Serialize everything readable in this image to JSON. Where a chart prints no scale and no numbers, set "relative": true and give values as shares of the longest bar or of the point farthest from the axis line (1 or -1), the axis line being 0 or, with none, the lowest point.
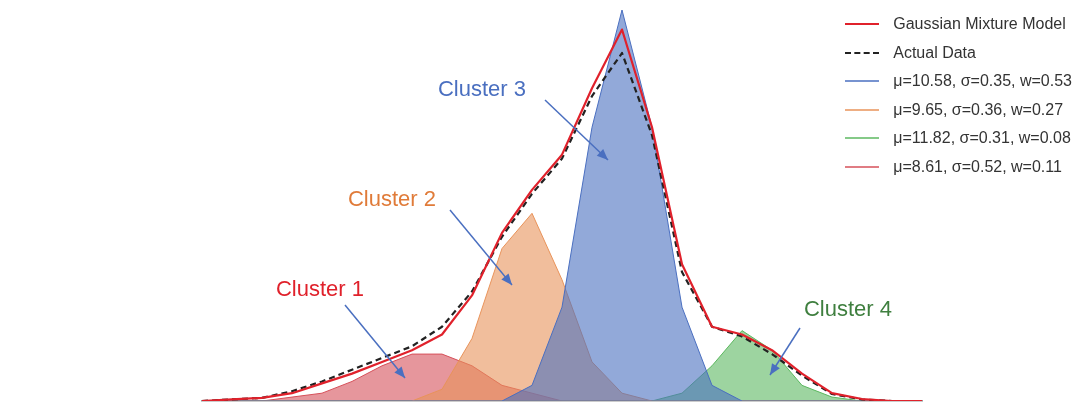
{
  "chart_data": {
    "type": "line",
    "relative": true,
    "grid": false,
    "legend": "top right",
    "marker": "none",
    "categories": [
      null,
      null,
      null,
      null,
      null,
      null,
      null,
      null,
      null,
      null,
      null,
      null,
      null,
      null,
      null,
      null,
      null,
      null,
      null,
      null,
      null,
      null,
      null,
      null,
      null
    ],
    "series": [
      {
        "name": "Gaussian Mixture Model",
        "type": "line",
        "color": "#e0212b",
        "line_style": "solid",
        "values": [
          0,
          0.004,
          0.008,
          0.02,
          0.045,
          0.07,
          0.1,
          0.13,
          0.17,
          0.27,
          0.43,
          0.54,
          0.63,
          0.8,
          0.95,
          0.7,
          0.35,
          0.19,
          0.17,
          0.13,
          0.07,
          0.02,
          0.005,
          0,
          0
        ]
      },
      {
        "name": "Actual Data",
        "type": "line",
        "color": "#222222",
        "line_style": "dashed",
        "values": [
          0,
          0.004,
          0.008,
          0.025,
          0.05,
          0.08,
          0.11,
          0.14,
          0.19,
          0.28,
          0.42,
          0.53,
          0.62,
          0.78,
          0.89,
          0.68,
          0.33,
          0.19,
          0.165,
          0.12,
          0.065,
          0.018,
          0.004,
          0,
          0
        ]
      },
      {
        "name": "μ=10.58, σ=0.35, w=0.53",
        "type": "area",
        "color": "#4a6fc0",
        "values": [
          0,
          0,
          0,
          0,
          0,
          0,
          0,
          0,
          0,
          0,
          0,
          0.04,
          0.24,
          0.7,
          1,
          0.7,
          0.24,
          0.04,
          0,
          0,
          0,
          0,
          0,
          0,
          0
        ]
      },
      {
        "name": "μ=9.65, σ=0.36, w=0.27",
        "type": "area",
        "color": "#e8935a",
        "values": [
          0,
          0,
          0,
          0,
          0,
          0,
          0,
          0,
          0.03,
          0.16,
          0.39,
          0.48,
          0.31,
          0.1,
          0.02,
          0,
          0,
          0,
          0,
          0,
          0,
          0,
          0,
          0,
          0
        ]
      },
      {
        "name": "μ=11.82, σ=0.31, w=0.08",
        "type": "area",
        "color": "#5cb860",
        "values": [
          0,
          0,
          0,
          0,
          0,
          0,
          0,
          0,
          0,
          0,
          0,
          0,
          0,
          0,
          0,
          0,
          0.02,
          0.09,
          0.18,
          0.13,
          0.04,
          0.01,
          0,
          0,
          0
        ]
      },
      {
        "name": "μ=8.61, σ=0.52, w=0.11",
        "type": "area",
        "color": "#d6505a",
        "values": [
          0,
          0,
          0,
          0.01,
          0.02,
          0.05,
          0.09,
          0.12,
          0.12,
          0.09,
          0.04,
          0.02,
          0,
          0,
          0,
          0,
          0,
          0,
          0,
          0,
          0,
          0,
          0,
          0,
          0
        ]
      }
    ],
    "annotations": [
      "Cluster 1",
      "Cluster 2",
      "Cluster 3",
      "Cluster 4"
    ]
  }
}
